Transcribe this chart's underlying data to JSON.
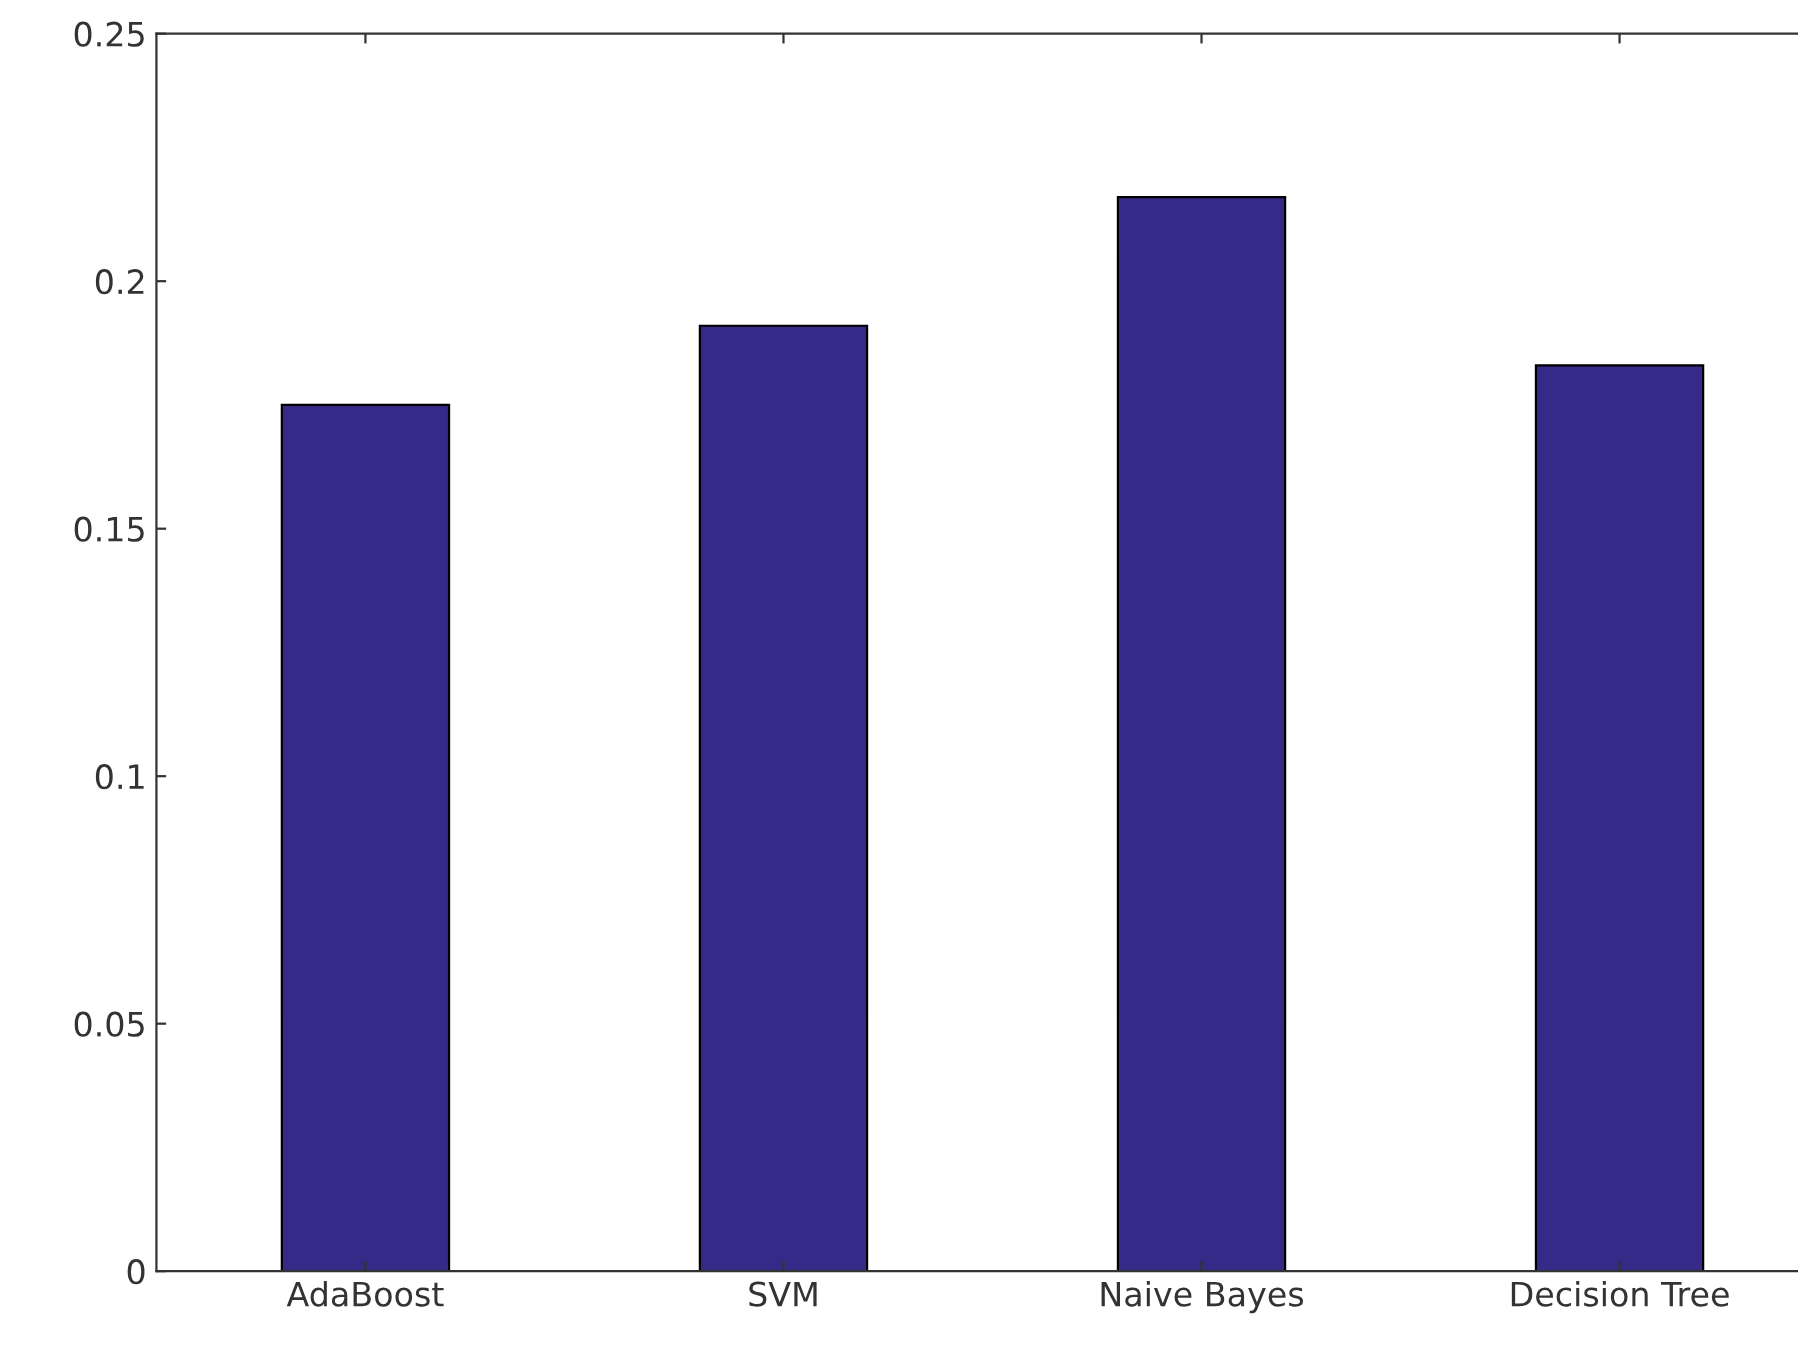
{
  "chart_data": {
    "type": "bar",
    "categories": [
      "AdaBoost",
      "SVM",
      "Naive Bayes",
      "Decision Tree"
    ],
    "values": [
      0.175,
      0.191,
      0.217,
      0.183
    ],
    "color": "#352a87",
    "ylim": [
      0,
      0.25
    ],
    "yticks": [
      0,
      0.05,
      0.1,
      0.15,
      0.2,
      0.25
    ],
    "grid": false,
    "legend": false
  }
}
